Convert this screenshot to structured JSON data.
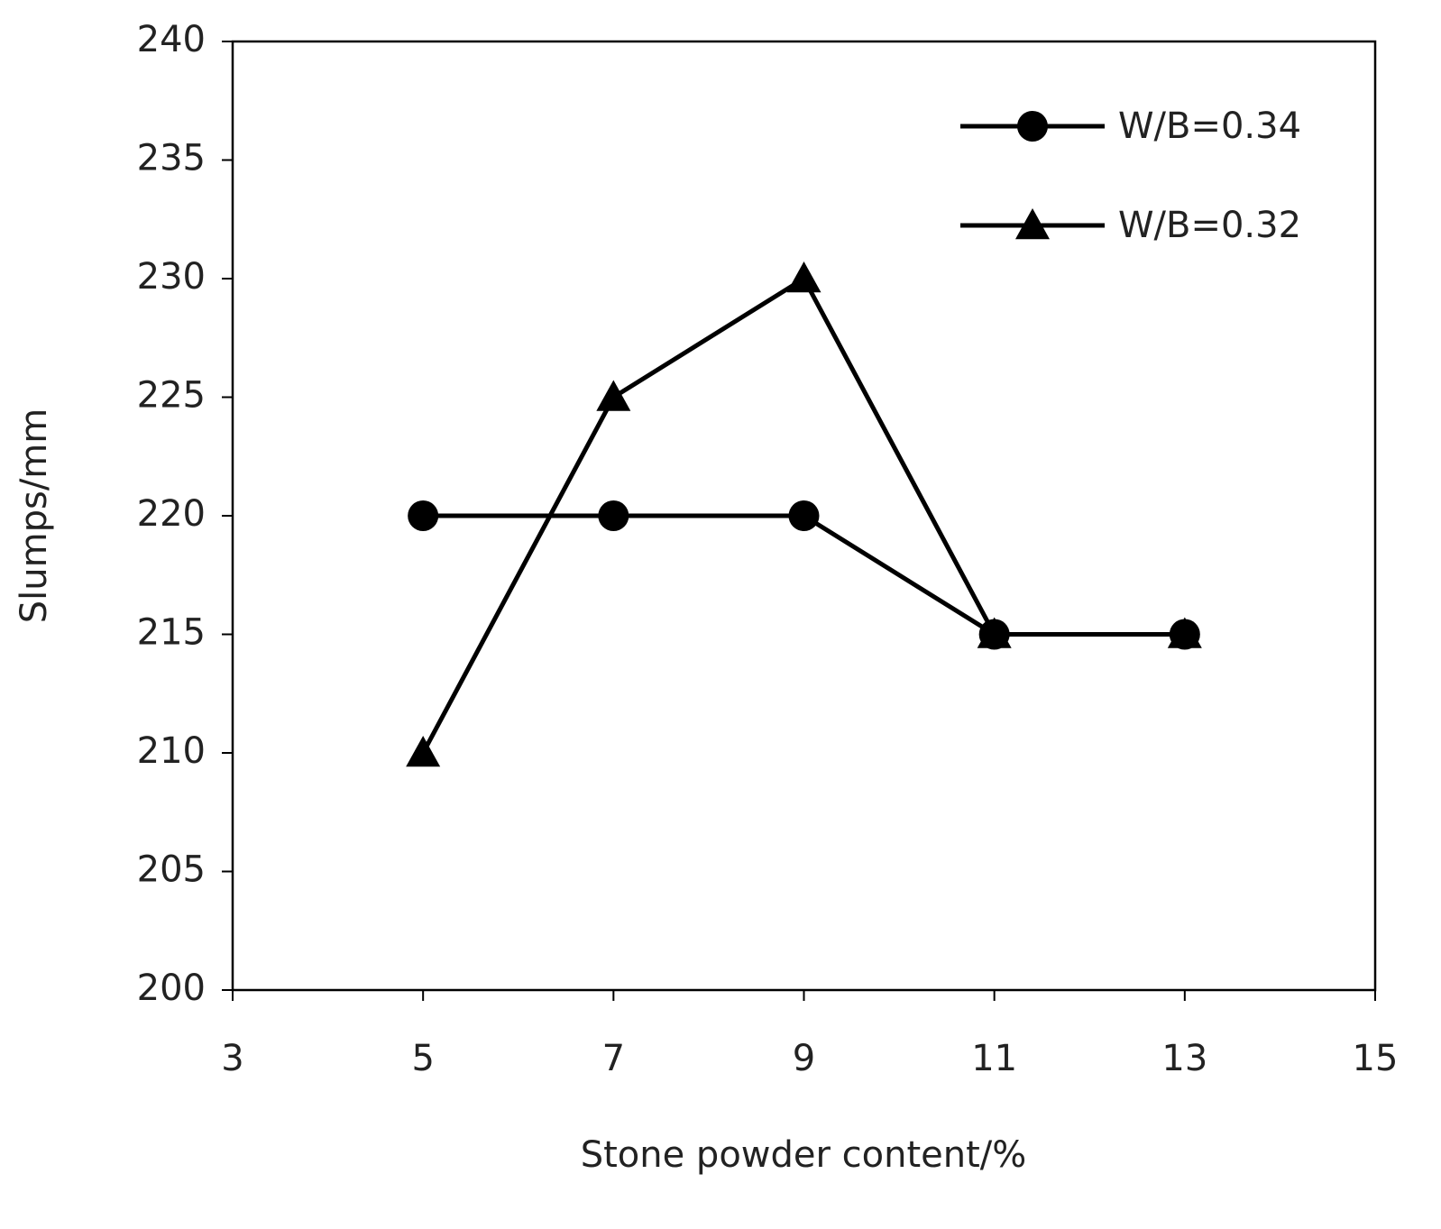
{
  "chart_data": {
    "type": "line",
    "x_label": "Stone powder content/%",
    "y_label": "Slumps/mm",
    "x": [
      5,
      7,
      9,
      11,
      13
    ],
    "series": [
      {
        "name": "W/B=0.34",
        "color": "#000000",
        "marker": "circle",
        "values": [
          220,
          220,
          220,
          215,
          215
        ]
      },
      {
        "name": "W/B=0.32",
        "color": "#000000",
        "marker": "triangle",
        "values": [
          210,
          225,
          230,
          215,
          215
        ]
      }
    ],
    "xlim": [
      3,
      15
    ],
    "xticks": [
      3,
      5,
      7,
      9,
      11,
      13,
      15
    ],
    "ylim": [
      200,
      240
    ],
    "yticks": [
      200,
      205,
      210,
      215,
      220,
      225,
      230,
      235,
      240
    ],
    "grid": false,
    "legend": "top-right"
  }
}
